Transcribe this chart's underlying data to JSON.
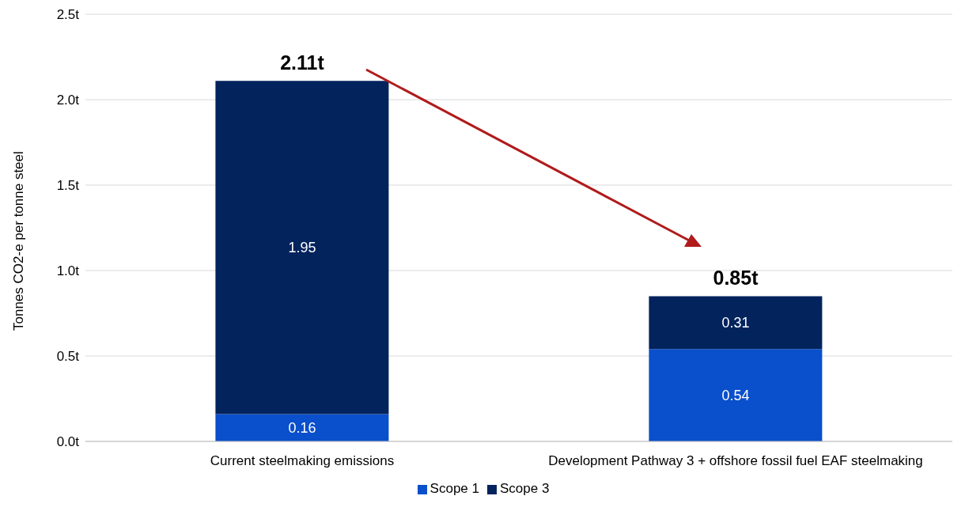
{
  "chart_data": {
    "type": "bar",
    "stacked": true,
    "ylabel": "Tonnes CO2-e per tonne steel",
    "categories": [
      "Current steelmaking emissions",
      "Development Pathway 3 + offshore fossil fuel EAF steelmaking"
    ],
    "series": [
      {
        "name": "Scope 1",
        "color": "#0a4fcb",
        "values": [
          0.16,
          0.54
        ]
      },
      {
        "name": "Scope 3",
        "color": "#03235d",
        "values": [
          1.95,
          0.31
        ]
      }
    ],
    "ylim": [
      0,
      2.5
    ],
    "yticks": [
      {
        "value": 0,
        "label": "0.0t"
      },
      {
        "value": 0.5,
        "label": "0.5t"
      },
      {
        "value": 1,
        "label": "1.0t"
      },
      {
        "value": 1.5,
        "label": "1.5t"
      },
      {
        "value": 2,
        "label": "2.0t"
      },
      {
        "value": 2.5,
        "label": "2.5t"
      }
    ],
    "grid": "y",
    "legend": "bottom",
    "data_labels": true,
    "annotations": [
      {
        "text": "2.11t",
        "x": "Current steelmaking emissions",
        "y": 2.11
      },
      {
        "text": "0.85t",
        "x": "Development Pathway 3 + offshore fossil fuel EAF steelmaking",
        "y": 0.85
      }
    ]
  }
}
